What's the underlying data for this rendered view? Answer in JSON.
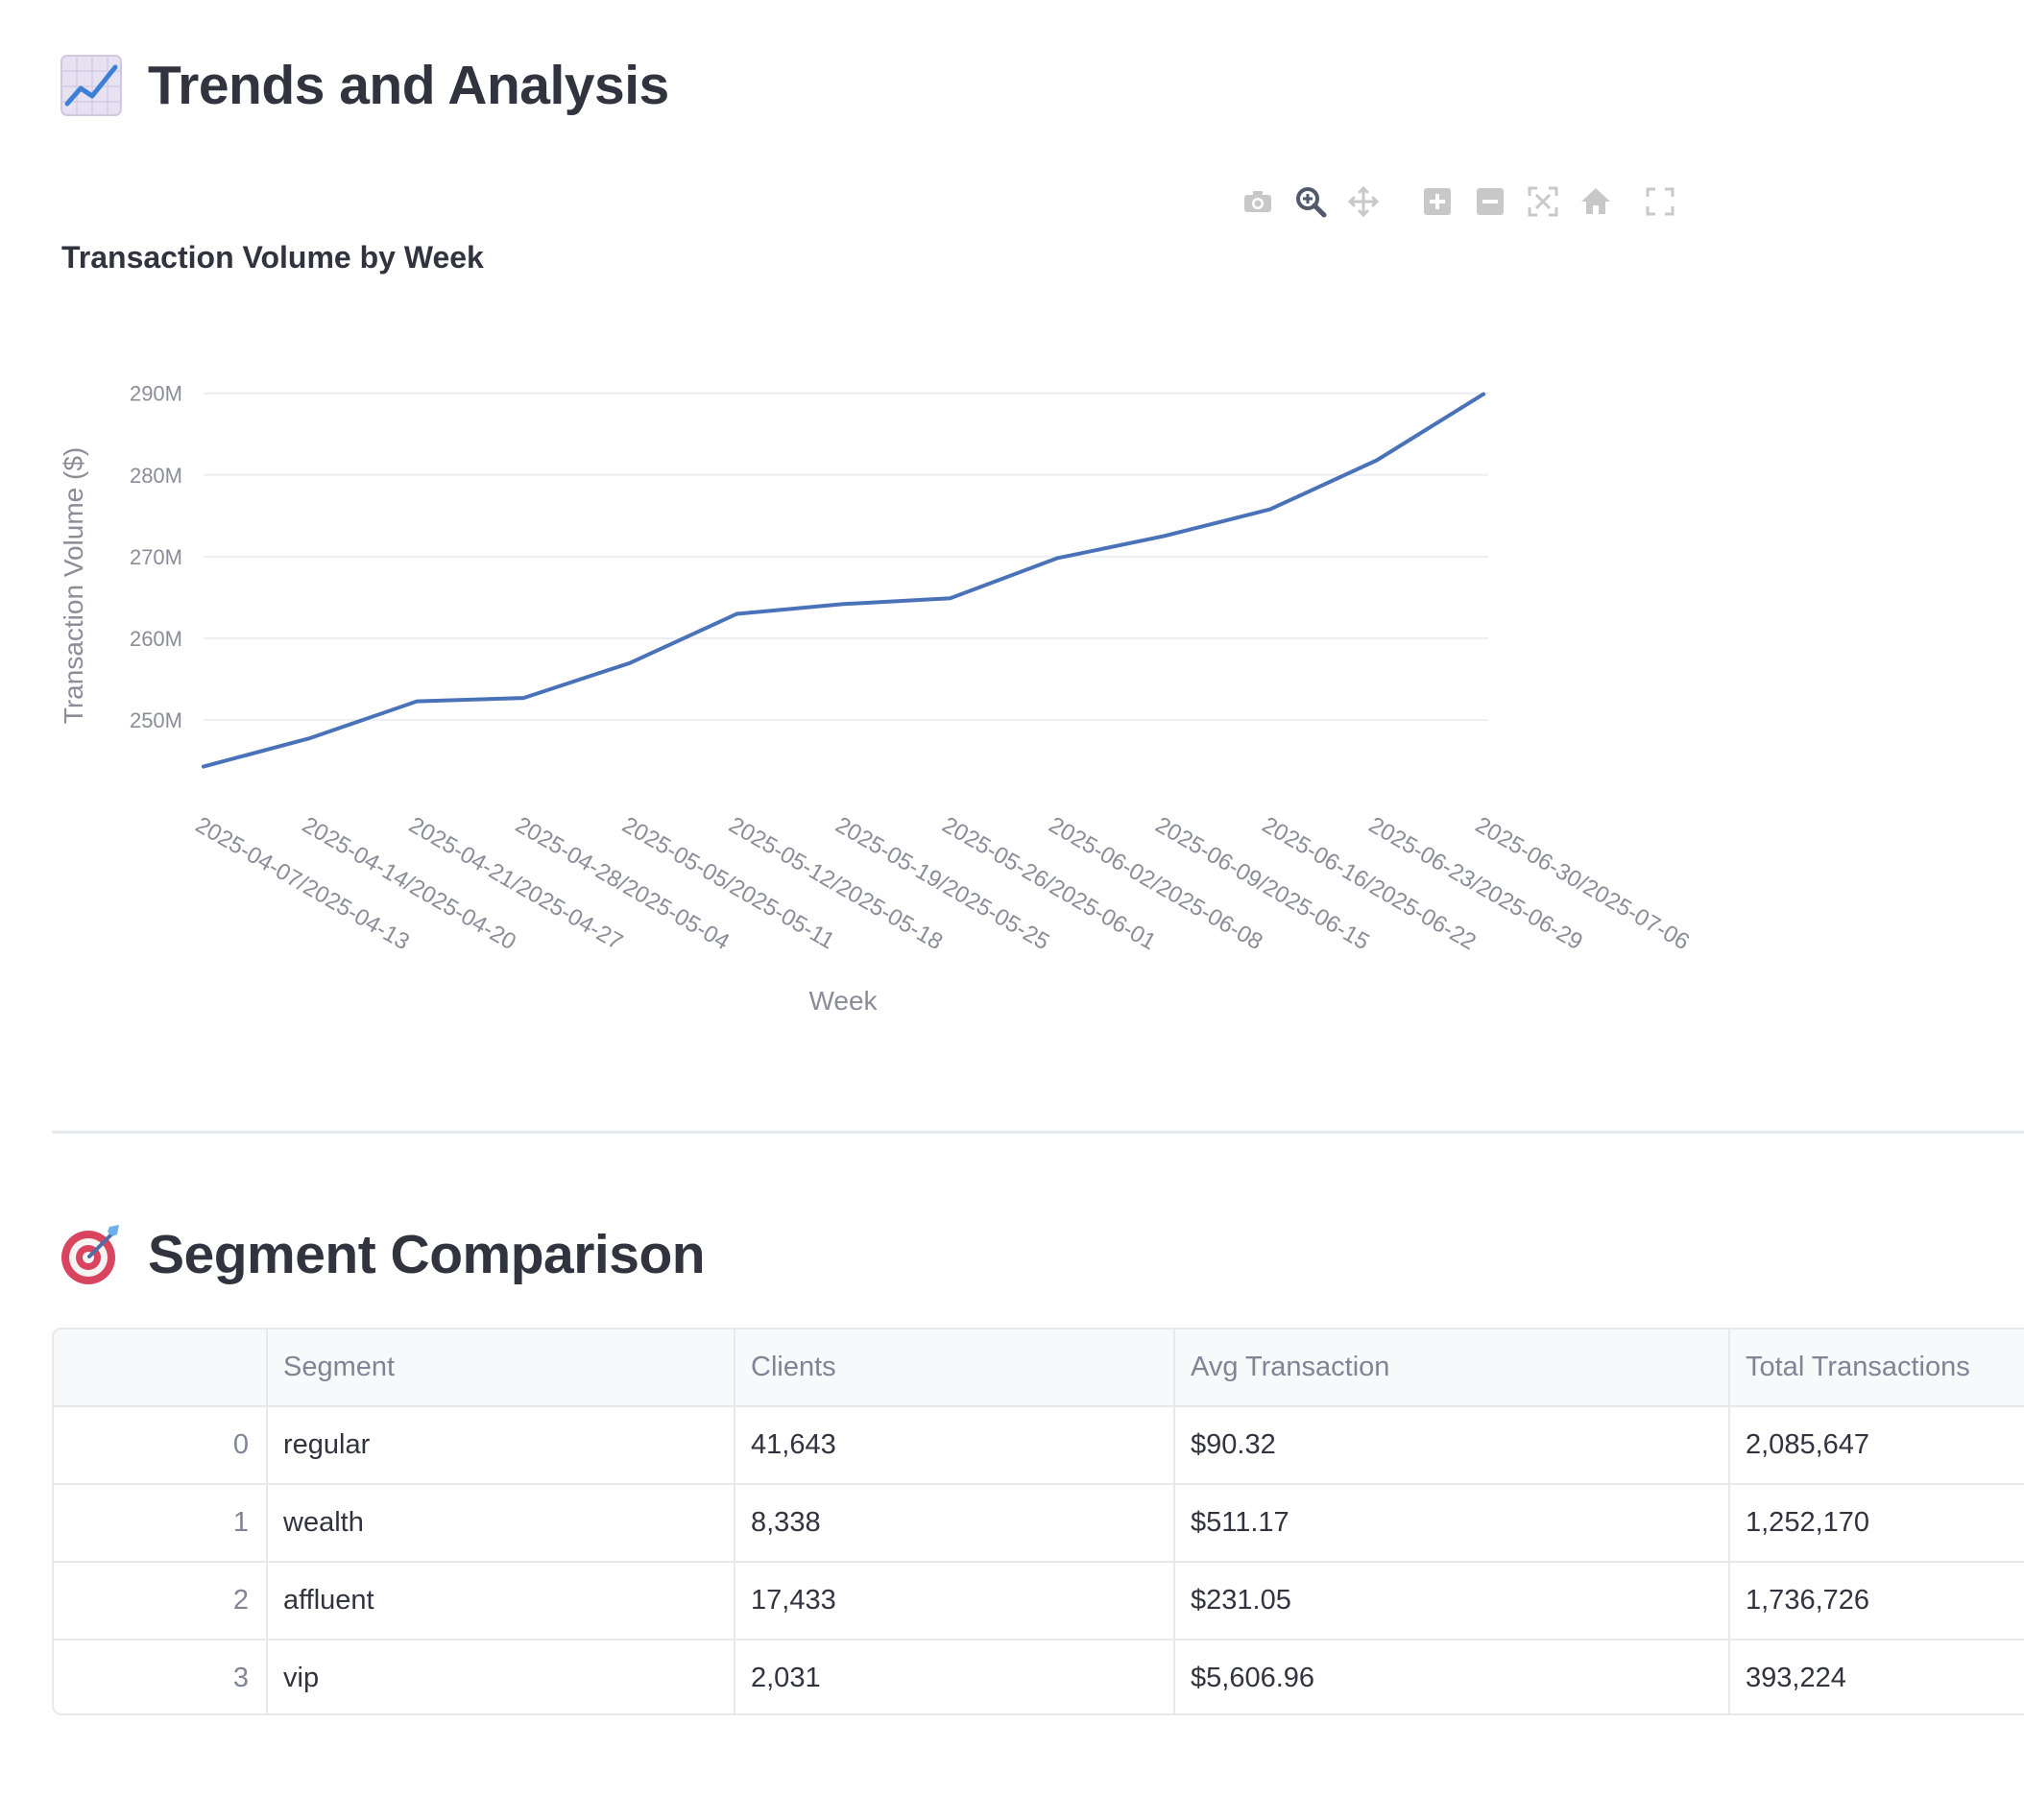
{
  "trends": {
    "title": "Trends and Analysis",
    "icon": "chart-increasing-icon"
  },
  "modebar": {
    "buttons": [
      {
        "name": "camera-icon",
        "title": "Download plot as a png"
      },
      {
        "name": "zoom-icon",
        "title": "Zoom"
      },
      {
        "name": "pan-icon",
        "title": "Pan"
      },
      {
        "name": "zoom-in-icon",
        "title": "Zoom in"
      },
      {
        "name": "zoom-out-icon",
        "title": "Zoom out"
      },
      {
        "name": "autoscale-icon",
        "title": "Autoscale"
      },
      {
        "name": "home-icon",
        "title": "Reset axes"
      },
      {
        "name": "fullscreen-icon",
        "title": "View fullscreen"
      }
    ]
  },
  "chart_data": {
    "type": "line",
    "title": "Transaction Volume by Week",
    "xlabel": "Week",
    "ylabel": "Transaction Volume ($)",
    "categories": [
      "2025-04-07/2025-04-13",
      "2025-04-14/2025-04-20",
      "2025-04-21/2025-04-27",
      "2025-04-28/2025-05-04",
      "2025-05-05/2025-05-11",
      "2025-05-12/2025-05-18",
      "2025-05-19/2025-05-25",
      "2025-05-26/2025-06-01",
      "2025-06-02/2025-06-08",
      "2025-06-09/2025-06-15",
      "2025-06-16/2025-06-22",
      "2025-06-23/2025-06-29",
      "2025-06-30/2025-07-06"
    ],
    "series": [
      {
        "values": [
          244.3,
          247.8,
          252.3,
          252.7,
          257.0,
          263.0,
          264.2,
          264.9,
          269.8,
          272.5,
          275.8,
          281.8,
          289.9
        ]
      }
    ],
    "yticks": [
      "250M",
      "260M",
      "270M",
      "280M",
      "290M"
    ],
    "ytick_values": [
      250,
      260,
      270,
      280,
      290
    ],
    "ylim": [
      243.2,
      290.2
    ],
    "grid": true,
    "line_color": "#4a72b8"
  },
  "segment": {
    "title": "Segment Comparison",
    "icon": "direct-hit-icon",
    "columns": [
      "",
      "Segment",
      "Clients",
      "Avg Transaction",
      "Total Transactions"
    ],
    "rows": [
      [
        "0",
        "regular",
        "41,643",
        "$90.32",
        "2,085,647"
      ],
      [
        "1",
        "wealth",
        "8,338",
        "$511.17",
        "1,252,170"
      ],
      [
        "2",
        "affluent",
        "17,433",
        "$231.05",
        "1,736,726"
      ],
      [
        "3",
        "vip",
        "2,031",
        "$5,606.96",
        "393,224"
      ]
    ]
  }
}
